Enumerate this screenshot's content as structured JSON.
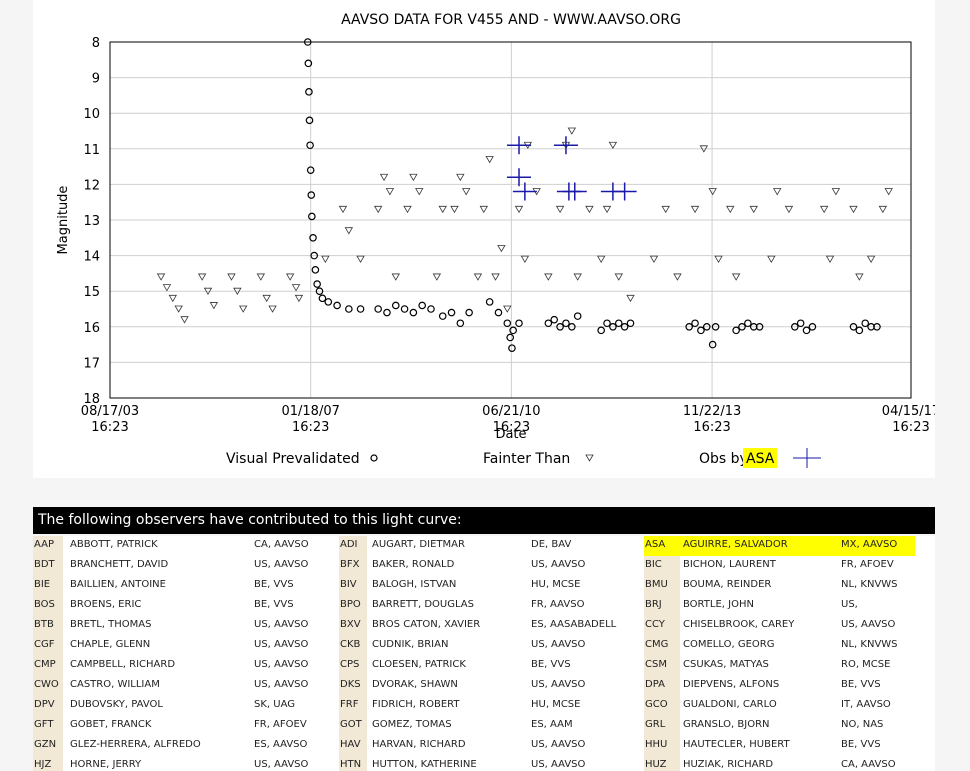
{
  "chart_data": {
    "type": "scatter",
    "title": "AAVSO DATA FOR V455 AND - WWW.AAVSO.ORG",
    "xlabel": "Date",
    "ylabel": "Magnitude",
    "ylim": [
      18,
      8
    ],
    "y_ticks": [
      "8",
      "9",
      "10",
      "11",
      "12",
      "13",
      "14",
      "15",
      "16",
      "17",
      "18"
    ],
    "x_ticks": [
      {
        "date": "08/17/03",
        "time": "16:23"
      },
      {
        "date": "01/18/07",
        "time": "16:23"
      },
      {
        "date": "06/21/10",
        "time": "16:23"
      },
      {
        "date": "11/22/13",
        "time": "16:23"
      },
      {
        "date": "04/15/17",
        "time": "16:23"
      }
    ],
    "grid": true,
    "legend": {
      "position": "bottom",
      "items": [
        {
          "label": "Visual Prevalidated",
          "marker": "circle"
        },
        {
          "label": "Fainter Than",
          "marker": "triangle-down"
        },
        {
          "label": "Obs by",
          "highlight": "ASA",
          "marker": "cross"
        }
      ]
    },
    "colors": {
      "visual": "#000000",
      "fainter": "#333333",
      "asa": "#1a1aaa",
      "highlight": "#ffff00"
    },
    "series": [
      {
        "name": "Visual Prevalidated",
        "marker": "circle",
        "points": [
          [
            2007.0,
            8.0
          ],
          [
            2007.01,
            8.6
          ],
          [
            2007.02,
            9.4
          ],
          [
            2007.03,
            10.2
          ],
          [
            2007.04,
            10.9
          ],
          [
            2007.05,
            11.6
          ],
          [
            2007.06,
            12.3
          ],
          [
            2007.07,
            12.9
          ],
          [
            2007.09,
            13.5
          ],
          [
            2007.11,
            14.0
          ],
          [
            2007.13,
            14.4
          ],
          [
            2007.16,
            14.8
          ],
          [
            2007.2,
            15.0
          ],
          [
            2007.25,
            15.2
          ],
          [
            2007.35,
            15.3
          ],
          [
            2007.5,
            15.4
          ],
          [
            2007.7,
            15.5
          ],
          [
            2007.9,
            15.5
          ],
          [
            2008.2,
            15.5
          ],
          [
            2008.35,
            15.6
          ],
          [
            2008.5,
            15.4
          ],
          [
            2008.65,
            15.5
          ],
          [
            2008.8,
            15.6
          ],
          [
            2008.95,
            15.4
          ],
          [
            2009.1,
            15.5
          ],
          [
            2009.3,
            15.7
          ],
          [
            2009.45,
            15.6
          ],
          [
            2009.6,
            15.9
          ],
          [
            2009.75,
            15.6
          ],
          [
            2010.1,
            15.3
          ],
          [
            2010.25,
            15.6
          ],
          [
            2010.4,
            15.9
          ],
          [
            2010.45,
            16.3
          ],
          [
            2010.48,
            16.6
          ],
          [
            2010.5,
            16.1
          ],
          [
            2010.6,
            15.9
          ],
          [
            2011.1,
            15.9
          ],
          [
            2011.2,
            15.8
          ],
          [
            2011.3,
            16.0
          ],
          [
            2011.4,
            15.9
          ],
          [
            2011.5,
            16.0
          ],
          [
            2011.6,
            15.7
          ],
          [
            2012.0,
            16.1
          ],
          [
            2012.1,
            15.9
          ],
          [
            2012.2,
            16.0
          ],
          [
            2012.3,
            15.9
          ],
          [
            2012.4,
            16.0
          ],
          [
            2012.5,
            15.9
          ],
          [
            2013.5,
            16.0
          ],
          [
            2013.6,
            15.9
          ],
          [
            2013.7,
            16.1
          ],
          [
            2013.8,
            16.0
          ],
          [
            2013.9,
            16.5
          ],
          [
            2013.95,
            16.0
          ],
          [
            2014.3,
            16.1
          ],
          [
            2014.4,
            16.0
          ],
          [
            2014.5,
            15.9
          ],
          [
            2014.6,
            16.0
          ],
          [
            2014.7,
            16.0
          ],
          [
            2015.3,
            16.0
          ],
          [
            2015.4,
            15.9
          ],
          [
            2015.5,
            16.1
          ],
          [
            2015.6,
            16.0
          ],
          [
            2016.3,
            16.0
          ],
          [
            2016.4,
            16.1
          ],
          [
            2016.5,
            15.9
          ],
          [
            2016.6,
            16.0
          ],
          [
            2016.7,
            16.0
          ]
        ]
      },
      {
        "name": "Fainter Than",
        "marker": "triangle-down",
        "points": [
          [
            2004.5,
            14.6
          ],
          [
            2004.6,
            14.9
          ],
          [
            2004.7,
            15.2
          ],
          [
            2004.8,
            15.5
          ],
          [
            2004.9,
            15.8
          ],
          [
            2005.2,
            14.6
          ],
          [
            2005.3,
            15.0
          ],
          [
            2005.4,
            15.4
          ],
          [
            2005.7,
            14.6
          ],
          [
            2005.8,
            15.0
          ],
          [
            2005.9,
            15.5
          ],
          [
            2006.2,
            14.6
          ],
          [
            2006.3,
            15.2
          ],
          [
            2006.4,
            15.5
          ],
          [
            2006.7,
            14.6
          ],
          [
            2006.8,
            14.9
          ],
          [
            2006.85,
            15.2
          ],
          [
            2007.3,
            14.1
          ],
          [
            2007.6,
            12.7
          ],
          [
            2007.7,
            13.3
          ],
          [
            2007.9,
            14.1
          ],
          [
            2008.2,
            12.7
          ],
          [
            2008.3,
            11.8
          ],
          [
            2008.4,
            12.2
          ],
          [
            2008.5,
            14.6
          ],
          [
            2008.7,
            12.7
          ],
          [
            2008.8,
            11.8
          ],
          [
            2008.9,
            12.2
          ],
          [
            2009.2,
            14.6
          ],
          [
            2009.3,
            12.7
          ],
          [
            2009.5,
            12.7
          ],
          [
            2009.6,
            11.8
          ],
          [
            2009.7,
            12.2
          ],
          [
            2009.9,
            14.6
          ],
          [
            2010.0,
            12.7
          ],
          [
            2010.1,
            11.3
          ],
          [
            2010.2,
            14.6
          ],
          [
            2010.3,
            13.8
          ],
          [
            2010.4,
            15.5
          ],
          [
            2010.6,
            12.7
          ],
          [
            2010.7,
            14.1
          ],
          [
            2010.75,
            10.9
          ],
          [
            2010.9,
            12.2
          ],
          [
            2011.1,
            14.6
          ],
          [
            2011.3,
            12.7
          ],
          [
            2011.4,
            10.9
          ],
          [
            2011.5,
            10.5
          ],
          [
            2011.6,
            14.6
          ],
          [
            2011.8,
            12.7
          ],
          [
            2012.0,
            14.1
          ],
          [
            2012.1,
            12.7
          ],
          [
            2012.2,
            10.9
          ],
          [
            2012.3,
            14.6
          ],
          [
            2012.5,
            15.2
          ],
          [
            2012.9,
            14.1
          ],
          [
            2013.1,
            12.7
          ],
          [
            2013.3,
            14.6
          ],
          [
            2013.6,
            12.7
          ],
          [
            2013.75,
            11.0
          ],
          [
            2013.9,
            12.2
          ],
          [
            2014.0,
            14.1
          ],
          [
            2014.2,
            12.7
          ],
          [
            2014.3,
            14.6
          ],
          [
            2014.6,
            12.7
          ],
          [
            2014.9,
            14.1
          ],
          [
            2015.0,
            12.2
          ],
          [
            2015.2,
            12.7
          ],
          [
            2015.8,
            12.7
          ],
          [
            2015.9,
            14.1
          ],
          [
            2016.0,
            12.2
          ],
          [
            2016.3,
            12.7
          ],
          [
            2016.4,
            14.6
          ],
          [
            2016.6,
            14.1
          ],
          [
            2016.8,
            12.7
          ],
          [
            2016.9,
            12.2
          ]
        ]
      },
      {
        "name": "Obs by ASA",
        "marker": "cross",
        "points": [
          [
            2010.6,
            10.9
          ],
          [
            2010.6,
            11.8
          ],
          [
            2010.7,
            12.2
          ],
          [
            2011.4,
            10.9
          ],
          [
            2011.45,
            12.2
          ],
          [
            2011.55,
            12.2
          ],
          [
            2012.2,
            12.2
          ],
          [
            2012.4,
            12.2
          ]
        ]
      }
    ]
  },
  "observers": {
    "header": "The following observers have contributed to this light curve:",
    "rows": [
      [
        {
          "code": "AAP",
          "name": "ABBOTT, PATRICK",
          "loc": "CA, AAVSO"
        },
        {
          "code": "ADI",
          "name": "AUGART, DIETMAR",
          "loc": "DE, BAV"
        },
        {
          "code": "ASA",
          "name": "AGUIRRE, SALVADOR",
          "loc": "MX, AAVSO"
        }
      ],
      [
        {
          "code": "BDT",
          "name": "BRANCHETT, DAVID",
          "loc": "US, AAVSO"
        },
        {
          "code": "BFX",
          "name": "BAKER, RONALD",
          "loc": "US, AAVSO"
        },
        {
          "code": "BIC",
          "name": "BICHON, LAURENT",
          "loc": "FR, AFOEV"
        }
      ],
      [
        {
          "code": "BIE",
          "name": "BAILLIEN, ANTOINE",
          "loc": "BE, VVS"
        },
        {
          "code": "BIV",
          "name": "BALOGH, ISTVAN",
          "loc": "HU, MCSE"
        },
        {
          "code": "BMU",
          "name": "BOUMA, REINDER",
          "loc": "NL, KNVWS"
        }
      ],
      [
        {
          "code": "BOS",
          "name": "BROENS, ERIC",
          "loc": "BE, VVS"
        },
        {
          "code": "BPO",
          "name": "BARRETT, DOUGLAS",
          "loc": "FR, AAVSO"
        },
        {
          "code": "BRJ",
          "name": "BORTLE, JOHN",
          "loc": "US,"
        }
      ],
      [
        {
          "code": "BTB",
          "name": "BRETL, THOMAS",
          "loc": "US, AAVSO"
        },
        {
          "code": "BXV",
          "name": "BROS CATON, XAVIER",
          "loc": "ES, AASABADELL"
        },
        {
          "code": "CCY",
          "name": "CHISELBROOK, CAREY",
          "loc": "US, AAVSO"
        }
      ],
      [
        {
          "code": "CGF",
          "name": "CHAPLE, GLENN",
          "loc": "US, AAVSO"
        },
        {
          "code": "CKB",
          "name": "CUDNIK, BRIAN",
          "loc": "US, AAVSO"
        },
        {
          "code": "CMG",
          "name": "COMELLO, GEORG",
          "loc": "NL, KNVWS"
        }
      ],
      [
        {
          "code": "CMP",
          "name": "CAMPBELL, RICHARD",
          "loc": "US, AAVSO"
        },
        {
          "code": "CPS",
          "name": "CLOESEN, PATRICK",
          "loc": "BE, VVS"
        },
        {
          "code": "CSM",
          "name": "CSUKAS, MATYAS",
          "loc": "RO, MCSE"
        }
      ],
      [
        {
          "code": "CWO",
          "name": "CASTRO, WILLIAM",
          "loc": "US, AAVSO"
        },
        {
          "code": "DKS",
          "name": "DVORAK, SHAWN",
          "loc": "US, AAVSO"
        },
        {
          "code": "DPA",
          "name": "DIEPVENS, ALFONS",
          "loc": "BE, VVS"
        }
      ],
      [
        {
          "code": "DPV",
          "name": "DUBOVSKY, PAVOL",
          "loc": "SK, UAG"
        },
        {
          "code": "FRF",
          "name": "FIDRICH, ROBERT",
          "loc": "HU, MCSE"
        },
        {
          "code": "GCO",
          "name": "GUALDONI, CARLO",
          "loc": "IT, AAVSO"
        }
      ],
      [
        {
          "code": "GFT",
          "name": "GOBET, FRANCK",
          "loc": "FR, AFOEV"
        },
        {
          "code": "GOT",
          "name": "GOMEZ, TOMAS",
          "loc": "ES, AAM"
        },
        {
          "code": "GRL",
          "name": "GRANSLO, BJORN",
          "loc": "NO, NAS"
        }
      ],
      [
        {
          "code": "GZN",
          "name": "GLEZ-HERRERA, ALFREDO",
          "loc": "ES, AAVSO"
        },
        {
          "code": "HAV",
          "name": "HARVAN, RICHARD",
          "loc": "US, AAVSO"
        },
        {
          "code": "HHU",
          "name": "HAUTECLER, HUBERT",
          "loc": "BE, VVS"
        }
      ],
      [
        {
          "code": "HJZ",
          "name": "HORNE, JERRY",
          "loc": "US, AAVSO"
        },
        {
          "code": "HTN",
          "name": "HUTTON, KATHERINE",
          "loc": "US, AAVSO"
        },
        {
          "code": "HUZ",
          "name": "HUZIAK, RICHARD",
          "loc": "CA, AAVSO"
        }
      ]
    ]
  }
}
